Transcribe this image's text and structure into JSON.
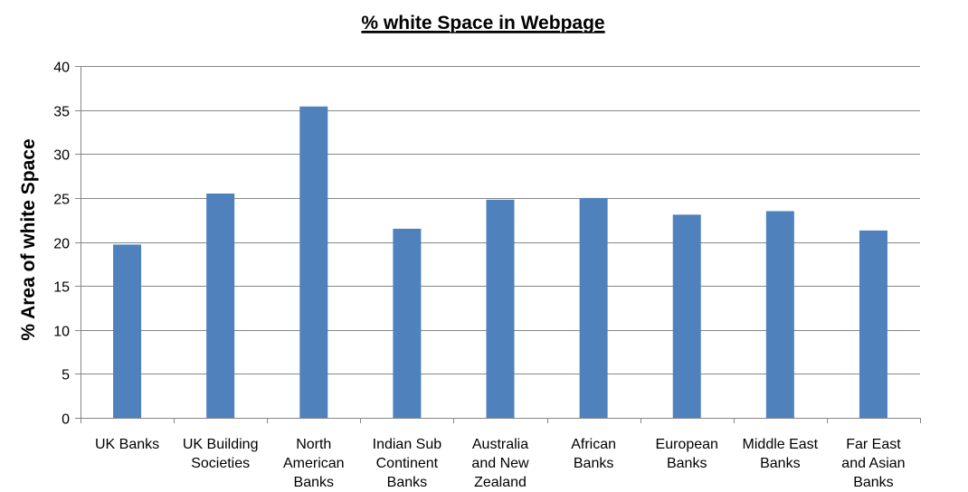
{
  "chart_data": {
    "type": "bar",
    "title": "% white Space in Webpage",
    "xlabel": "",
    "ylabel": "% Area of white Space",
    "ylim": [
      0,
      40
    ],
    "yticks": [
      0,
      5,
      10,
      15,
      20,
      25,
      30,
      35,
      40
    ],
    "grid": true,
    "legend": "none",
    "bar_color": "#4F81BD",
    "categories": [
      "UK Banks",
      "UK Building Societies",
      "North American Banks",
      "Indian Sub Continent Banks",
      "Australia and New Zealand",
      "African Banks",
      "European Banks",
      "Middle East Banks",
      "Far East and Asian Banks"
    ],
    "category_lines": [
      [
        "UK Banks"
      ],
      [
        "UK Building",
        "Societies"
      ],
      [
        "North",
        "American",
        "Banks"
      ],
      [
        "Indian Sub",
        "Continent",
        "Banks"
      ],
      [
        "Australia",
        "and New",
        "Zealand"
      ],
      [
        "African",
        "Banks"
      ],
      [
        "European",
        "Banks"
      ],
      [
        "Middle East",
        "Banks"
      ],
      [
        "Far East",
        "and Asian",
        "Banks"
      ]
    ],
    "values": [
      19.7,
      25.5,
      35.4,
      21.5,
      24.8,
      25.0,
      23.1,
      23.5,
      21.3
    ]
  }
}
